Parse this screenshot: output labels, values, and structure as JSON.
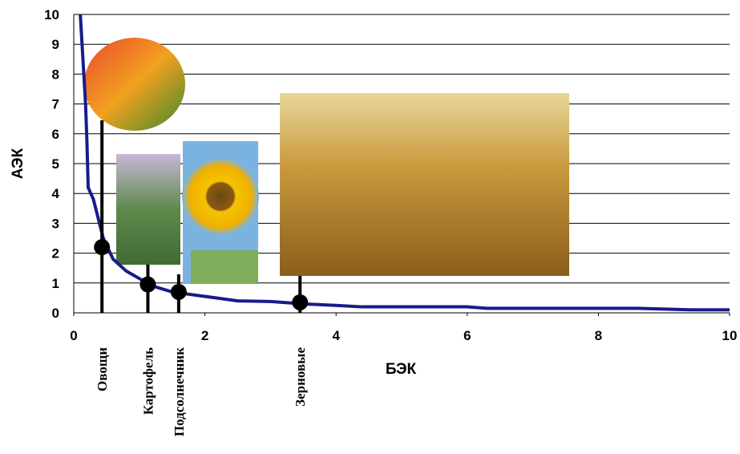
{
  "chart_data": {
    "type": "line",
    "x_label": "БЭК",
    "y_label": "АЭК",
    "x": [
      0.1,
      0.18,
      0.2,
      0.22,
      0.3,
      0.45,
      0.6,
      0.8,
      1.0,
      1.2,
      1.5,
      2.0,
      2.5,
      3.0,
      3.5,
      4.0,
      4.4,
      5.0,
      6.0,
      6.3,
      8.6,
      9.4,
      10.0
    ],
    "series": [
      {
        "color": "#1a1a8c",
        "values": [
          10,
          7,
          5.8,
          4.2,
          3.8,
          2.5,
          1.8,
          1.4,
          1.15,
          0.9,
          0.7,
          0.55,
          0.4,
          0.38,
          0.3,
          0.25,
          0.2,
          0.2,
          0.2,
          0.15,
          0.15,
          0.1,
          0.1
        ]
      }
    ],
    "points": {
      "labels": [
        "Овощи",
        "Картофель",
        "Подсолнечник",
        "Зерновые"
      ],
      "x": [
        0.43,
        1.13,
        1.6,
        3.45
      ],
      "y": [
        2.2,
        0.95,
        0.7,
        0.35
      ]
    },
    "xlim": [
      0,
      10
    ],
    "ylim": [
      0,
      10
    ],
    "xticks": [
      0,
      2,
      4,
      6,
      8,
      10
    ],
    "yticks": [
      0,
      1,
      2,
      3,
      4,
      5,
      6,
      7,
      8,
      9,
      10
    ],
    "grid": true
  }
}
